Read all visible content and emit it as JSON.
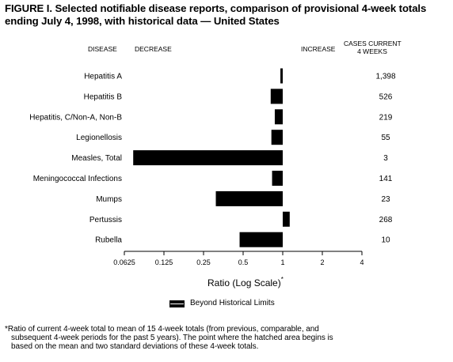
{
  "title": {
    "line1": "FIGURE I. Selected notifiable disease reports, comparison of provisional 4-week totals",
    "line2": "ending July 4, 1998, with historical data — United States"
  },
  "headers": {
    "disease": "DISEASE",
    "decrease": "DECREASE",
    "increase": "INCREASE",
    "cases_line1": "CASES CURRENT",
    "cases_line2": "4 WEEKS"
  },
  "axis": {
    "title": "Ratio (Log Scale)",
    "title_mark": "*"
  },
  "legend": {
    "label": "Beyond Historical Limits"
  },
  "footnote": {
    "line1": "*Ratio of current 4-week total to mean of 15 4-week totals (from previous, comparable, and",
    "line2": "subsequent 4-week periods for the past 5 years). The point where the hatched area begins is",
    "line3": "based on the mean and two standard deviations of these 4-week totals."
  },
  "chart_data": {
    "type": "bar",
    "orientation": "horizontal",
    "scale": "log2",
    "baseline": 1,
    "xlim": [
      0.0625,
      4
    ],
    "ticks": [
      0.0625,
      0.125,
      0.25,
      0.5,
      1,
      2,
      4
    ],
    "tick_labels": [
      "0.0625",
      "0.125",
      "0.25",
      "0.5",
      "1",
      "2",
      "4"
    ],
    "bar_color": "#000000",
    "categories": [
      "Hepatitis A",
      "Hepatitis B",
      "Hepatitis, C/Non-A, Non-B",
      "Legionellosis",
      "Measles, Total",
      "Meningococcal Infections",
      "Mumps",
      "Pertussis",
      "Rubella"
    ],
    "values": [
      0.96,
      0.81,
      0.87,
      0.82,
      0.073,
      0.83,
      0.31,
      1.13,
      0.47
    ],
    "cases": [
      "1,398",
      "526",
      "219",
      "55",
      "3",
      "141",
      "23",
      "268",
      "10"
    ]
  }
}
